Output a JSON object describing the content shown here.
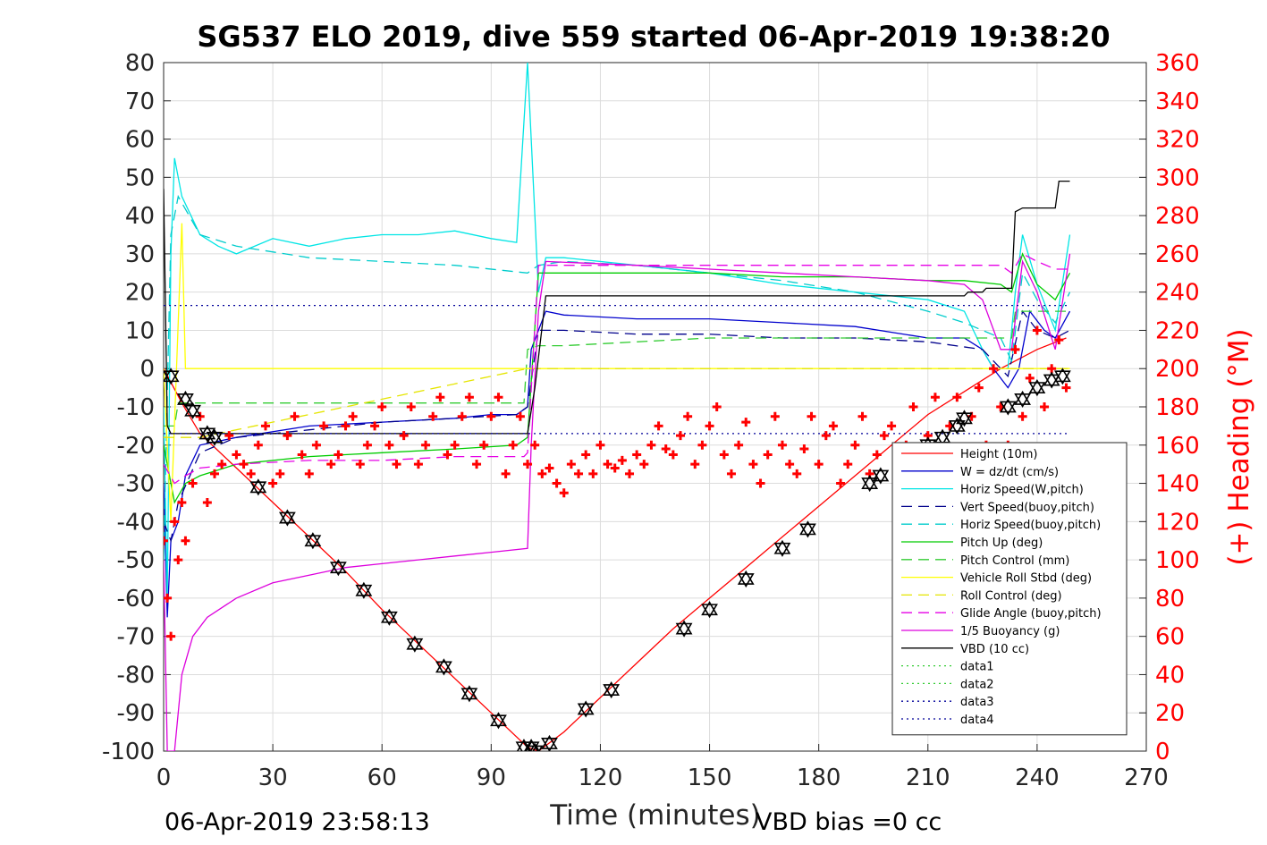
{
  "chart_data": {
    "type": "line",
    "title": "SG537 ELO 2019, dive 559 started 06-Apr-2019 19:38:20",
    "xlabel": "Time (minutes)",
    "ylabel": "",
    "ylabel_right": "(+) Heading (°M)",
    "xlim": [
      0,
      270
    ],
    "ylim": [
      -100,
      80
    ],
    "ylim_right": [
      0,
      360
    ],
    "x_ticks": [
      "0",
      "30",
      "60",
      "90",
      "120",
      "150",
      "180",
      "210",
      "240",
      "270"
    ],
    "y_ticks": [
      "80",
      "70",
      "60",
      "50",
      "40",
      "30",
      "20",
      "10",
      "0",
      "-10",
      "-20",
      "-30",
      "-40",
      "-50",
      "-60",
      "-70",
      "-80",
      "-90",
      "-100"
    ],
    "y_ticks_right": [
      "360",
      "340",
      "320",
      "300",
      "280",
      "260",
      "240",
      "220",
      "200",
      "180",
      "160",
      "140",
      "120",
      "100",
      "80",
      "60",
      "40",
      "20",
      "0"
    ],
    "grid": true,
    "legend_position": "lower-right",
    "footer_left": "06-Apr-2019 23:58:13",
    "footer_right": "VBD bias =0 cc",
    "colors": {
      "height": "#ff0000",
      "w": "#0000cd",
      "horiz_w": "#00e5e5",
      "vert_buoy": "#00008b",
      "horiz_buoy": "#00cccc",
      "pitch_up": "#00cc00",
      "pitch_ctrl": "#33cc33",
      "roll": "#ffff00",
      "roll_ctrl": "#e5e500",
      "glide": "#e600e6",
      "buoy": "#dd00dd",
      "vbd": "#000000",
      "heading": "#ff0000",
      "dotted_green": "#33cc33",
      "dotted_blue": "#000099"
    },
    "series": [
      {
        "name": "Height (10m)",
        "color": "#ff0000",
        "dash": "solid",
        "x": [
          0,
          5,
          10,
          20,
          30,
          40,
          50,
          60,
          70,
          80,
          90,
          100,
          103,
          110,
          120,
          130,
          140,
          150,
          160,
          170,
          180,
          190,
          200,
          210,
          220,
          230,
          240,
          248
        ],
        "y": [
          0,
          -9,
          -17,
          -26,
          -35,
          -44,
          -53,
          -63,
          -72,
          -81,
          -90,
          -99,
          -100,
          -95,
          -86,
          -77,
          -68,
          -60,
          -52,
          -44,
          -36,
          -28,
          -20,
          -12,
          -6,
          0,
          5,
          8
        ]
      },
      {
        "name": "W = dz/dt (cm/s)",
        "color": "#0000cd",
        "dash": "solid",
        "x": [
          0,
          1,
          2,
          4,
          6,
          10,
          20,
          40,
          60,
          80,
          90,
          97,
          100,
          101,
          103,
          105,
          110,
          130,
          150,
          170,
          190,
          210,
          220,
          225,
          228,
          232,
          235,
          238,
          242,
          245,
          249
        ],
        "y": [
          -30,
          -65,
          -45,
          -40,
          -28,
          -20,
          -18,
          -15,
          -14,
          -13,
          -12,
          -12,
          -10,
          5,
          10,
          15,
          14,
          13,
          13,
          12,
          11,
          8,
          8,
          5,
          0,
          -5,
          0,
          15,
          10,
          8,
          15
        ]
      },
      {
        "name": "Horiz Speed(W,pitch)",
        "color": "#00e5e5",
        "dash": "solid",
        "x": [
          0,
          1,
          2,
          3,
          5,
          10,
          15,
          20,
          30,
          40,
          50,
          60,
          70,
          80,
          90,
          97,
          100,
          101,
          102,
          103,
          105,
          110,
          130,
          150,
          170,
          190,
          210,
          220,
          225,
          228,
          232,
          234,
          236,
          240,
          245,
          249
        ],
        "y": [
          -10,
          -60,
          30,
          55,
          45,
          35,
          32,
          30,
          34,
          32,
          34,
          35,
          35,
          36,
          34,
          33,
          80,
          60,
          40,
          20,
          29,
          29,
          27,
          25,
          22,
          20,
          18,
          15,
          5,
          0,
          0,
          20,
          35,
          22,
          10,
          35
        ]
      },
      {
        "name": "Vert Speed(buoy,pitch)",
        "color": "#00008b",
        "dash": "dashed",
        "x": [
          0,
          2,
          4,
          10,
          20,
          40,
          60,
          80,
          97,
          100,
          103,
          110,
          130,
          150,
          170,
          190,
          210,
          225,
          230,
          232,
          236,
          240,
          245,
          249
        ],
        "y": [
          -40,
          -45,
          -35,
          -22,
          -18,
          -16,
          -14,
          -13,
          -12,
          -10,
          10,
          10,
          9,
          9,
          8,
          8,
          7,
          5,
          0,
          -2,
          15,
          10,
          8,
          10
        ]
      },
      {
        "name": "Horiz Speed(buoy,pitch)",
        "color": "#00cccc",
        "dash": "dashed",
        "x": [
          0,
          2,
          4,
          10,
          20,
          40,
          60,
          80,
          100,
          103,
          110,
          130,
          150,
          170,
          190,
          210,
          220,
          230,
          233,
          236,
          240,
          245,
          249
        ],
        "y": [
          -50,
          35,
          45,
          35,
          32,
          29,
          28,
          27,
          25,
          27,
          28,
          27,
          25,
          23,
          20,
          15,
          12,
          8,
          2,
          25,
          18,
          12,
          20
        ]
      },
      {
        "name": "Pitch Up (deg)",
        "color": "#00cc00",
        "dash": "solid",
        "x": [
          0,
          3,
          6,
          10,
          20,
          40,
          60,
          80,
          97,
          100,
          103,
          110,
          130,
          150,
          170,
          190,
          210,
          220,
          230,
          233,
          236,
          240,
          245,
          249
        ],
        "y": [
          -20,
          -35,
          -30,
          -28,
          -25,
          -23,
          -22,
          -21,
          -20,
          -18,
          25,
          25,
          25,
          25,
          24,
          24,
          23,
          23,
          22,
          20,
          30,
          22,
          18,
          25
        ]
      },
      {
        "name": "Pitch Control (mm)",
        "color": "#33cc33",
        "dash": "dashed",
        "x": [
          0,
          3,
          4,
          10,
          20,
          40,
          60,
          80,
          99,
          100,
          103,
          110,
          130,
          150,
          170,
          190,
          210,
          225,
          233,
          234,
          249
        ],
        "y": [
          -15,
          -15,
          -9,
          -9,
          -9,
          -9,
          -9,
          -9,
          -9,
          5,
          6,
          6,
          7,
          8,
          8,
          8,
          8,
          8,
          8,
          15,
          15
        ]
      },
      {
        "name": "Vehicle Roll Stbd (deg)",
        "color": "#ffff00",
        "dash": "solid",
        "x": [
          0,
          2,
          5,
          6,
          10,
          20,
          30,
          40,
          50,
          60,
          70,
          80,
          90,
          100,
          102,
          105,
          110,
          130,
          150,
          170,
          190,
          210,
          220,
          230,
          240,
          249
        ],
        "y": [
          0,
          -40,
          38,
          0,
          0,
          0,
          0,
          0,
          0,
          0,
          0,
          0,
          0,
          0,
          0,
          0,
          0,
          0,
          0,
          0,
          0,
          0,
          0,
          0,
          0,
          0
        ]
      },
      {
        "name": "Roll Control (deg)",
        "color": "#e5e500",
        "dash": "dashed",
        "x": [
          0,
          10,
          100,
          110,
          200,
          249
        ],
        "y": [
          -18,
          -18,
          0,
          0,
          0,
          0
        ]
      },
      {
        "name": "Glide Angle (buoy,pitch)",
        "color": "#e600e6",
        "dash": "dashed",
        "x": [
          0,
          3,
          6,
          10,
          20,
          40,
          60,
          80,
          99,
          100,
          103,
          110,
          130,
          150,
          170,
          190,
          210,
          225,
          230,
          233,
          236,
          240,
          245,
          249
        ],
        "y": [
          -25,
          -30,
          -28,
          -26,
          -25,
          -24,
          -24,
          -23,
          -23,
          -22,
          27,
          27,
          27,
          27,
          27,
          27,
          27,
          27,
          27,
          25,
          30,
          28,
          26,
          26
        ]
      },
      {
        "name": "1/5 Buoyancy (g)",
        "color": "#dd00dd",
        "dash": "solid",
        "x": [
          0,
          1,
          2,
          3,
          5,
          8,
          12,
          20,
          30,
          40,
          50,
          60,
          70,
          80,
          90,
          100,
          101,
          103,
          105,
          130,
          150,
          170,
          190,
          210,
          220,
          225,
          230,
          233,
          236,
          240,
          245,
          249
        ],
        "y": [
          -50,
          -100,
          -100,
          -100,
          -80,
          -70,
          -65,
          -60,
          -56,
          -54,
          -52,
          -51,
          -50,
          -49,
          -48,
          -47,
          -20,
          15,
          28,
          27,
          26,
          25,
          24,
          23,
          22,
          18,
          5,
          5,
          28,
          20,
          5,
          30
        ]
      },
      {
        "name": "VBD (10 cc)",
        "color": "#000000",
        "dash": "solid",
        "x": [
          0,
          1,
          2,
          100,
          102,
          105,
          110,
          130,
          150,
          170,
          190,
          210,
          220,
          221,
          225,
          226,
          233,
          234,
          236,
          245,
          246,
          249
        ],
        "y": [
          47,
          -15,
          -17,
          -17,
          -5,
          19,
          19,
          19,
          19,
          19,
          19,
          19,
          19,
          20,
          20,
          21,
          21,
          41,
          42,
          42,
          49,
          49
        ]
      },
      {
        "name": "data1",
        "color": "#33cc33",
        "dash": "dotted",
        "x": [],
        "y": []
      },
      {
        "name": "data2",
        "color": "#33cc33",
        "dash": "dotted",
        "x": [],
        "y": []
      },
      {
        "name": "data3",
        "color": "#000099",
        "dash": "dotted",
        "x": [
          0,
          249
        ],
        "y": [
          16.5,
          16.5
        ]
      },
      {
        "name": "data4",
        "color": "#000099",
        "dash": "dotted",
        "x": [
          0,
          249
        ],
        "y": [
          -17,
          -17
        ]
      }
    ],
    "heading": {
      "axis": "right",
      "color": "#ff0000",
      "marker": "+",
      "x": [
        0,
        1,
        2,
        3,
        4,
        5,
        6,
        8,
        10,
        12,
        14,
        16,
        18,
        20,
        22,
        24,
        26,
        28,
        30,
        32,
        34,
        36,
        38,
        40,
        42,
        44,
        46,
        48,
        50,
        52,
        54,
        56,
        58,
        60,
        62,
        64,
        66,
        68,
        70,
        72,
        74,
        76,
        78,
        80,
        82,
        84,
        86,
        88,
        90,
        92,
        94,
        96,
        98,
        100,
        102,
        104,
        106,
        108,
        110,
        112,
        114,
        116,
        118,
        120,
        122,
        124,
        126,
        128,
        130,
        132,
        134,
        136,
        138,
        140,
        142,
        144,
        146,
        148,
        150,
        152,
        154,
        156,
        158,
        160,
        162,
        164,
        166,
        168,
        170,
        172,
        174,
        176,
        178,
        180,
        182,
        184,
        186,
        188,
        190,
        192,
        194,
        196,
        198,
        200,
        202,
        204,
        206,
        208,
        210,
        212,
        214,
        216,
        218,
        220,
        222,
        224,
        226,
        228,
        230,
        232,
        234,
        236,
        238,
        240,
        242,
        244,
        246,
        248
      ],
      "y": [
        110,
        80,
        60,
        120,
        100,
        130,
        110,
        140,
        175,
        130,
        145,
        150,
        165,
        155,
        150,
        145,
        160,
        170,
        140,
        145,
        165,
        175,
        155,
        145,
        160,
        170,
        150,
        155,
        170,
        175,
        150,
        160,
        170,
        180,
        160,
        150,
        165,
        180,
        150,
        160,
        175,
        185,
        155,
        160,
        175,
        185,
        150,
        160,
        175,
        185,
        145,
        160,
        175,
        150,
        160,
        145,
        148,
        140,
        135,
        150,
        145,
        155,
        145,
        160,
        150,
        148,
        152,
        145,
        155,
        150,
        160,
        170,
        158,
        155,
        165,
        175,
        150,
        160,
        170,
        180,
        155,
        145,
        160,
        172,
        150,
        140,
        155,
        175,
        160,
        150,
        145,
        158,
        175,
        150,
        165,
        170,
        140,
        150,
        160,
        175,
        145,
        155,
        165,
        170,
        145,
        160,
        180,
        150,
        165,
        185,
        150,
        170,
        185,
        155,
        175,
        190,
        160,
        200,
        180,
        160,
        210,
        175,
        195,
        220,
        180,
        200,
        215,
        190
      ]
    },
    "markers": {
      "color": "#000000",
      "down_x": [
        2,
        6,
        8,
        12,
        14,
        26,
        34,
        41,
        48,
        55,
        62,
        69,
        77,
        84,
        92,
        99,
        101,
        102
      ],
      "down_y": [
        -2,
        -8,
        -11,
        -17,
        -18,
        -31,
        -39,
        -45,
        -52,
        -58,
        -65,
        -72,
        -78,
        -85,
        -92,
        -99,
        -99,
        -100
      ],
      "up_x": [
        106,
        116,
        123,
        143,
        150,
        160,
        170,
        177,
        194,
        197,
        210,
        214,
        218,
        220,
        232,
        236,
        240,
        244,
        247
      ],
      "up_y": [
        -98,
        -89,
        -84,
        -68,
        -63,
        -55,
        -47,
        -42,
        -30,
        -28,
        -20,
        -18,
        -15,
        -13,
        -10,
        -8,
        -5,
        -3,
        -2
      ]
    }
  }
}
